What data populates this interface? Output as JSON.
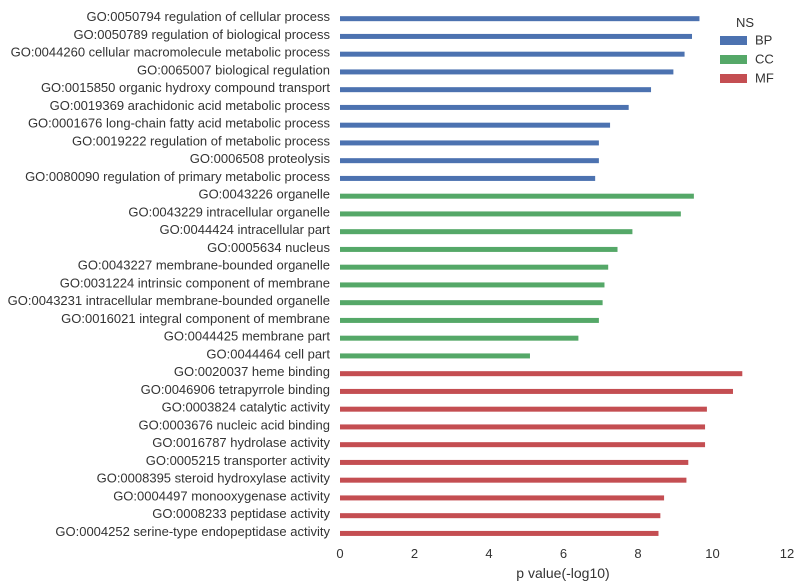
{
  "chart_data": {
    "type": "bar",
    "orientation": "horizontal",
    "xlabel": "p value(-log10)",
    "ylabel": "",
    "title": "",
    "xlim": [
      0,
      12
    ],
    "xticks": [
      0,
      2,
      4,
      6,
      8,
      10,
      12
    ],
    "grid": false,
    "legend": {
      "title": "NS",
      "placement": "top-right",
      "entries": [
        {
          "name": "BP",
          "color": "#4c72b0"
        },
        {
          "name": "CC",
          "color": "#55a868"
        },
        {
          "name": "MF",
          "color": "#c44e52"
        }
      ]
    },
    "bars": [
      {
        "label": "GO:0050794 regulation of cellular process",
        "value": 9.65,
        "group": "BP"
      },
      {
        "label": "GO:0050789 regulation of biological process",
        "value": 9.45,
        "group": "BP"
      },
      {
        "label": "GO:0044260 cellular macromolecule metabolic process",
        "value": 9.25,
        "group": "BP"
      },
      {
        "label": "GO:0065007 biological regulation",
        "value": 8.95,
        "group": "BP"
      },
      {
        "label": "GO:0015850 organic hydroxy compound transport",
        "value": 8.35,
        "group": "BP"
      },
      {
        "label": "GO:0019369 arachidonic acid metabolic process",
        "value": 7.75,
        "group": "BP"
      },
      {
        "label": "GO:0001676 long-chain fatty acid metabolic process",
        "value": 7.25,
        "group": "BP"
      },
      {
        "label": "GO:0019222 regulation of metabolic process",
        "value": 6.95,
        "group": "BP"
      },
      {
        "label": "GO:0006508 proteolysis",
        "value": 6.95,
        "group": "BP"
      },
      {
        "label": "GO:0080090 regulation of primary metabolic process",
        "value": 6.85,
        "group": "BP"
      },
      {
        "label": "GO:0043226 organelle",
        "value": 9.5,
        "group": "CC"
      },
      {
        "label": "GO:0043229 intracellular organelle",
        "value": 9.15,
        "group": "CC"
      },
      {
        "label": "GO:0044424 intracellular part",
        "value": 7.85,
        "group": "CC"
      },
      {
        "label": "GO:0005634 nucleus",
        "value": 7.45,
        "group": "CC"
      },
      {
        "label": "GO:0043227 membrane-bounded organelle",
        "value": 7.2,
        "group": "CC"
      },
      {
        "label": "GO:0031224 intrinsic component of membrane",
        "value": 7.1,
        "group": "CC"
      },
      {
        "label": "GO:0043231 intracellular membrane-bounded organelle",
        "value": 7.05,
        "group": "CC"
      },
      {
        "label": "GO:0016021 integral component of membrane",
        "value": 6.95,
        "group": "CC"
      },
      {
        "label": "GO:0044425 membrane part",
        "value": 6.4,
        "group": "CC"
      },
      {
        "label": "GO:0044464 cell part",
        "value": 5.1,
        "group": "CC"
      },
      {
        "label": "GO:0020037 heme binding",
        "value": 10.8,
        "group": "MF"
      },
      {
        "label": "GO:0046906 tetrapyrrole binding",
        "value": 10.55,
        "group": "MF"
      },
      {
        "label": "GO:0003824 catalytic activity",
        "value": 9.85,
        "group": "MF"
      },
      {
        "label": "GO:0003676 nucleic acid binding",
        "value": 9.8,
        "group": "MF"
      },
      {
        "label": "GO:0016787 hydrolase activity",
        "value": 9.8,
        "group": "MF"
      },
      {
        "label": "GO:0005215 transporter activity",
        "value": 9.35,
        "group": "MF"
      },
      {
        "label": "GO:0008395 steroid hydroxylase activity",
        "value": 9.3,
        "group": "MF"
      },
      {
        "label": "GO:0004497 monooxygenase activity",
        "value": 8.7,
        "group": "MF"
      },
      {
        "label": "GO:0008233 peptidase activity",
        "value": 8.6,
        "group": "MF"
      },
      {
        "label": "GO:0004252 serine-type endopeptidase activity",
        "value": 8.55,
        "group": "MF"
      }
    ]
  }
}
